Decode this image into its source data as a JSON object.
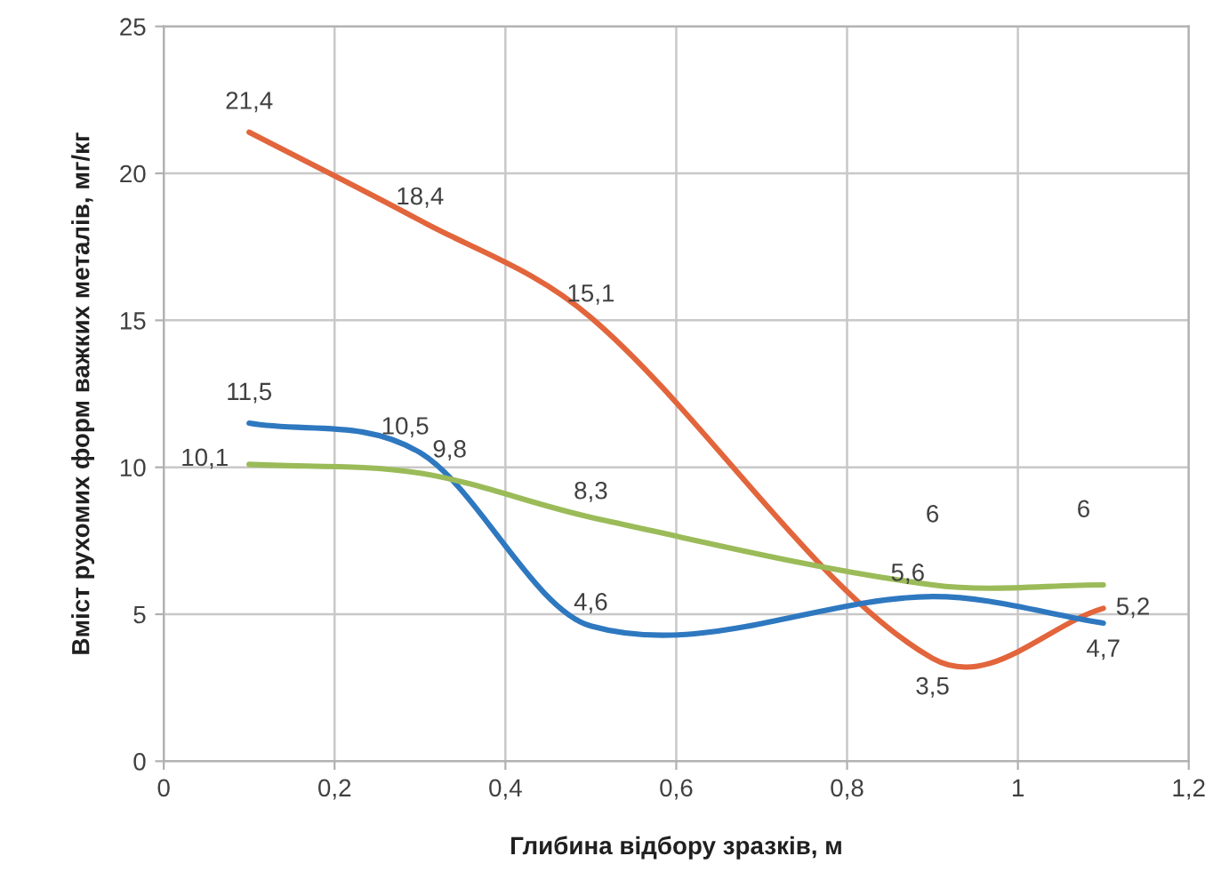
{
  "chart_data": {
    "type": "line",
    "xlabel": "Глибина відбору зразків, м",
    "ylabel": "Вміст рухомих форм важких металів, мг/кг",
    "xlim": [
      0,
      1.2
    ],
    "xticks": [
      0,
      {
        "value": 0.2,
        "label": "0,2"
      },
      {
        "value": 0.4,
        "label": "0,4"
      },
      {
        "value": 0.6,
        "label": "0,6"
      },
      {
        "value": 0.8,
        "label": "0,8"
      },
      1,
      {
        "value": 1.2,
        "label": "1,2"
      }
    ],
    "ylim": [
      0,
      25
    ],
    "yticks": [
      0,
      5,
      10,
      15,
      20,
      25
    ],
    "grid": true,
    "legend": false,
    "marker": "none",
    "line_style": "solid",
    "x": [
      0.1,
      0.3,
      0.5,
      0.9,
      1.1
    ],
    "series": [
      {
        "color": "#e2653c",
        "values": [
          21.4,
          18.4,
          15.1,
          3.5,
          5.2
        ],
        "value_labels": [
          "21,4",
          "18,4",
          "15,1",
          "3,5",
          "5,2"
        ]
      },
      {
        "color": "#2e78c0",
        "values": [
          11.5,
          10.5,
          4.6,
          5.6,
          4.7
        ],
        "value_labels": [
          "11,5",
          "10,5",
          "4,6",
          "5,6",
          "4,7"
        ]
      },
      {
        "color": "#9bbb59",
        "values": [
          10.1,
          9.8,
          8.3,
          6,
          6
        ],
        "value_labels": [
          "10,1",
          "9,8",
          "8,3",
          "6",
          "6"
        ]
      }
    ]
  }
}
